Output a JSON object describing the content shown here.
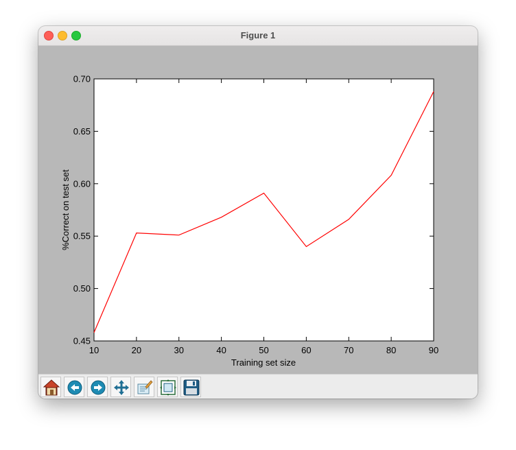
{
  "window": {
    "title": "Figure 1"
  },
  "toolbar": {
    "buttons": [
      {
        "icon": "home-icon",
        "tooltip": "Home"
      },
      {
        "icon": "back-arrow-icon",
        "tooltip": "Back"
      },
      {
        "icon": "forward-arrow-icon",
        "tooltip": "Forward"
      },
      {
        "icon": "pan-move-icon",
        "tooltip": "Pan"
      },
      {
        "icon": "zoom-rect-icon",
        "tooltip": "Zoom"
      },
      {
        "icon": "subplots-config-icon",
        "tooltip": "Configure subplots"
      },
      {
        "icon": "save-floppy-icon",
        "tooltip": "Save"
      }
    ]
  },
  "colors": {
    "line": "#ff0000",
    "figure_bg": "#b8b8b8",
    "axes_bg": "#ffffff"
  },
  "chart_data": {
    "type": "line",
    "title": "",
    "xlabel": "Training set size",
    "ylabel": "%Correct on test set",
    "xlim": [
      10,
      90
    ],
    "ylim": [
      0.45,
      0.7
    ],
    "xticks": [
      10,
      20,
      30,
      40,
      50,
      60,
      70,
      80,
      90
    ],
    "xtick_labels": [
      "10",
      "20",
      "30",
      "40",
      "50",
      "60",
      "70",
      "80",
      "90"
    ],
    "yticks": [
      0.45,
      0.5,
      0.55,
      0.6,
      0.65,
      0.7
    ],
    "ytick_labels": [
      "0.45",
      "0.50",
      "0.55",
      "0.60",
      "0.65",
      "0.70"
    ],
    "grid": false,
    "series": [
      {
        "color": "#ff0000",
        "x": [
          10,
          20,
          30,
          40,
          50,
          60,
          70,
          80,
          90
        ],
        "y": [
          0.458,
          0.553,
          0.551,
          0.568,
          0.591,
          0.54,
          0.566,
          0.608,
          0.688
        ]
      }
    ]
  }
}
